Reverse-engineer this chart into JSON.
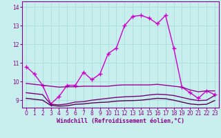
{
  "xlabel": "Windchill (Refroidissement éolien,°C)",
  "xlim": [
    -0.5,
    23.5
  ],
  "ylim": [
    8.6,
    14.3
  ],
  "yticks": [
    9,
    10,
    11,
    12,
    13,
    14
  ],
  "xticks": [
    0,
    1,
    2,
    3,
    4,
    5,
    6,
    7,
    8,
    9,
    10,
    11,
    12,
    13,
    14,
    15,
    16,
    17,
    18,
    19,
    20,
    21,
    22,
    23
  ],
  "background_color": "#c8eeee",
  "grid_color": "#aadddd",
  "label_color": "#880088",
  "lines": [
    {
      "x": [
        0,
        1,
        2,
        3,
        4,
        5,
        6,
        7,
        8,
        9,
        10,
        11,
        12,
        13,
        14,
        15,
        16,
        17,
        18,
        19,
        20,
        21,
        22,
        23
      ],
      "y": [
        10.8,
        10.4,
        9.8,
        8.8,
        9.2,
        9.8,
        9.8,
        10.5,
        10.1,
        10.4,
        11.5,
        11.8,
        13.0,
        13.5,
        13.55,
        13.4,
        13.1,
        13.55,
        11.8,
        9.7,
        9.4,
        9.1,
        9.5,
        9.3
      ],
      "color": "#cc00cc",
      "linewidth": 1.0,
      "marker": "+",
      "markersize": 4
    },
    {
      "x": [
        0,
        1,
        2,
        3,
        4,
        5,
        6,
        7,
        8,
        9,
        10,
        11,
        12,
        13,
        14,
        15,
        16,
        17,
        18,
        19,
        20,
        21,
        22,
        23
      ],
      "y": [
        9.9,
        9.85,
        9.8,
        9.75,
        9.7,
        9.72,
        9.72,
        9.75,
        9.75,
        9.75,
        9.75,
        9.8,
        9.82,
        9.82,
        9.82,
        9.82,
        9.85,
        9.8,
        9.75,
        9.7,
        9.55,
        9.45,
        9.5,
        9.5
      ],
      "color": "#990099",
      "linewidth": 1.0,
      "marker": null
    },
    {
      "x": [
        0,
        1,
        2,
        3,
        4,
        5,
        6,
        7,
        8,
        9,
        10,
        11,
        12,
        13,
        14,
        15,
        16,
        17,
        18,
        19,
        20,
        21,
        22,
        23
      ],
      "y": [
        9.4,
        9.35,
        9.3,
        8.78,
        8.75,
        8.8,
        8.9,
        8.92,
        9.0,
        9.05,
        9.1,
        9.15,
        9.18,
        9.2,
        9.22,
        9.28,
        9.32,
        9.3,
        9.25,
        9.15,
        9.05,
        8.98,
        9.0,
        9.25
      ],
      "color": "#770077",
      "linewidth": 1.0,
      "marker": null
    },
    {
      "x": [
        0,
        1,
        2,
        3,
        4,
        5,
        6,
        7,
        8,
        9,
        10,
        11,
        12,
        13,
        14,
        15,
        16,
        17,
        18,
        19,
        20,
        21,
        22,
        23
      ],
      "y": [
        9.1,
        9.05,
        9.0,
        8.72,
        8.68,
        8.7,
        8.78,
        8.8,
        8.85,
        8.88,
        8.9,
        8.95,
        8.97,
        8.98,
        9.0,
        9.05,
        9.1,
        9.08,
        9.0,
        8.9,
        8.8,
        8.76,
        8.78,
        8.98
      ],
      "color": "#550055",
      "linewidth": 1.0,
      "marker": null
    }
  ]
}
